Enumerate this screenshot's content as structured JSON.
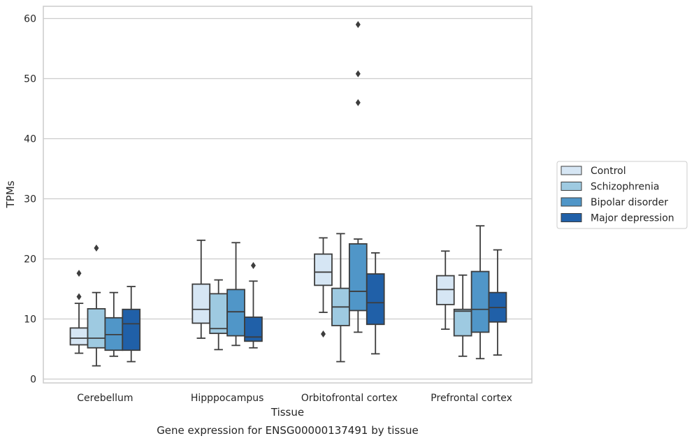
{
  "chart_data": {
    "type": "box",
    "title": "",
    "caption": "Gene expression for ENSG00000137491 by tissue",
    "xlabel": "Tissue",
    "ylabel": "TPMs",
    "ylim": [
      -0.5,
      62
    ],
    "yticks": [
      0,
      10,
      20,
      30,
      40,
      50,
      60
    ],
    "grid": "horizontal",
    "legend_position": "right",
    "categories": [
      "Cerebellum",
      "Hipppocampus",
      "Orbitofrontal cortex",
      "Prefrontal cortex"
    ],
    "series": [
      {
        "name": "Control",
        "color": "#d6e6f4",
        "boxes": [
          {
            "whislo": 4.3,
            "q1": 5.7,
            "med": 6.8,
            "q3": 8.5,
            "whishi": 12.6,
            "fliers": [
              13.7,
              17.6
            ]
          },
          {
            "whislo": 6.8,
            "q1": 9.3,
            "med": 11.6,
            "q3": 15.8,
            "whishi": 23.1,
            "fliers": []
          },
          {
            "whislo": 11.1,
            "q1": 15.6,
            "med": 17.8,
            "q3": 20.8,
            "whishi": 23.5,
            "fliers": [
              7.5
            ]
          },
          {
            "whislo": 8.3,
            "q1": 12.4,
            "med": 14.9,
            "q3": 17.2,
            "whishi": 21.3,
            "fliers": []
          }
        ]
      },
      {
        "name": "Schizophrenia",
        "color": "#9ecae1",
        "boxes": [
          {
            "whislo": 2.2,
            "q1": 5.2,
            "med": 6.8,
            "q3": 11.7,
            "whishi": 14.4,
            "fliers": [
              21.8
            ]
          },
          {
            "whislo": 4.9,
            "q1": 7.6,
            "med": 8.4,
            "q3": 14.2,
            "whishi": 16.5,
            "fliers": []
          },
          {
            "whislo": 2.9,
            "q1": 8.9,
            "med": 12.0,
            "q3": 15.1,
            "whishi": 24.2,
            "fliers": []
          },
          {
            "whislo": 3.8,
            "q1": 7.2,
            "med": 11.3,
            "q3": 11.6,
            "whishi": 17.3,
            "fliers": []
          }
        ]
      },
      {
        "name": "Bipolar disorder",
        "color": "#5096c8",
        "boxes": [
          {
            "whislo": 3.8,
            "q1": 4.8,
            "med": 7.4,
            "q3": 10.2,
            "whishi": 14.4,
            "fliers": []
          },
          {
            "whislo": 5.6,
            "q1": 7.2,
            "med": 11.2,
            "q3": 14.9,
            "whishi": 22.7,
            "fliers": []
          },
          {
            "whislo": 7.8,
            "q1": 11.4,
            "med": 14.6,
            "q3": 22.5,
            "whishi": 23.3,
            "fliers": [
              46.0,
              50.8,
              59.0
            ]
          },
          {
            "whislo": 3.4,
            "q1": 7.8,
            "med": 11.6,
            "q3": 17.9,
            "whishi": 25.5,
            "fliers": []
          }
        ]
      },
      {
        "name": "Major depression",
        "color": "#2060a8",
        "boxes": [
          {
            "whislo": 2.9,
            "q1": 4.8,
            "med": 9.2,
            "q3": 11.6,
            "whishi": 15.4,
            "fliers": []
          },
          {
            "whislo": 5.2,
            "q1": 6.3,
            "med": 7.0,
            "q3": 10.3,
            "whishi": 16.3,
            "fliers": [
              18.9
            ]
          },
          {
            "whislo": 4.2,
            "q1": 9.1,
            "med": 12.7,
            "q3": 17.5,
            "whishi": 21.0,
            "fliers": []
          },
          {
            "whislo": 4.0,
            "q1": 9.5,
            "med": 11.9,
            "q3": 14.4,
            "whishi": 21.5,
            "fliers": []
          }
        ]
      }
    ]
  }
}
